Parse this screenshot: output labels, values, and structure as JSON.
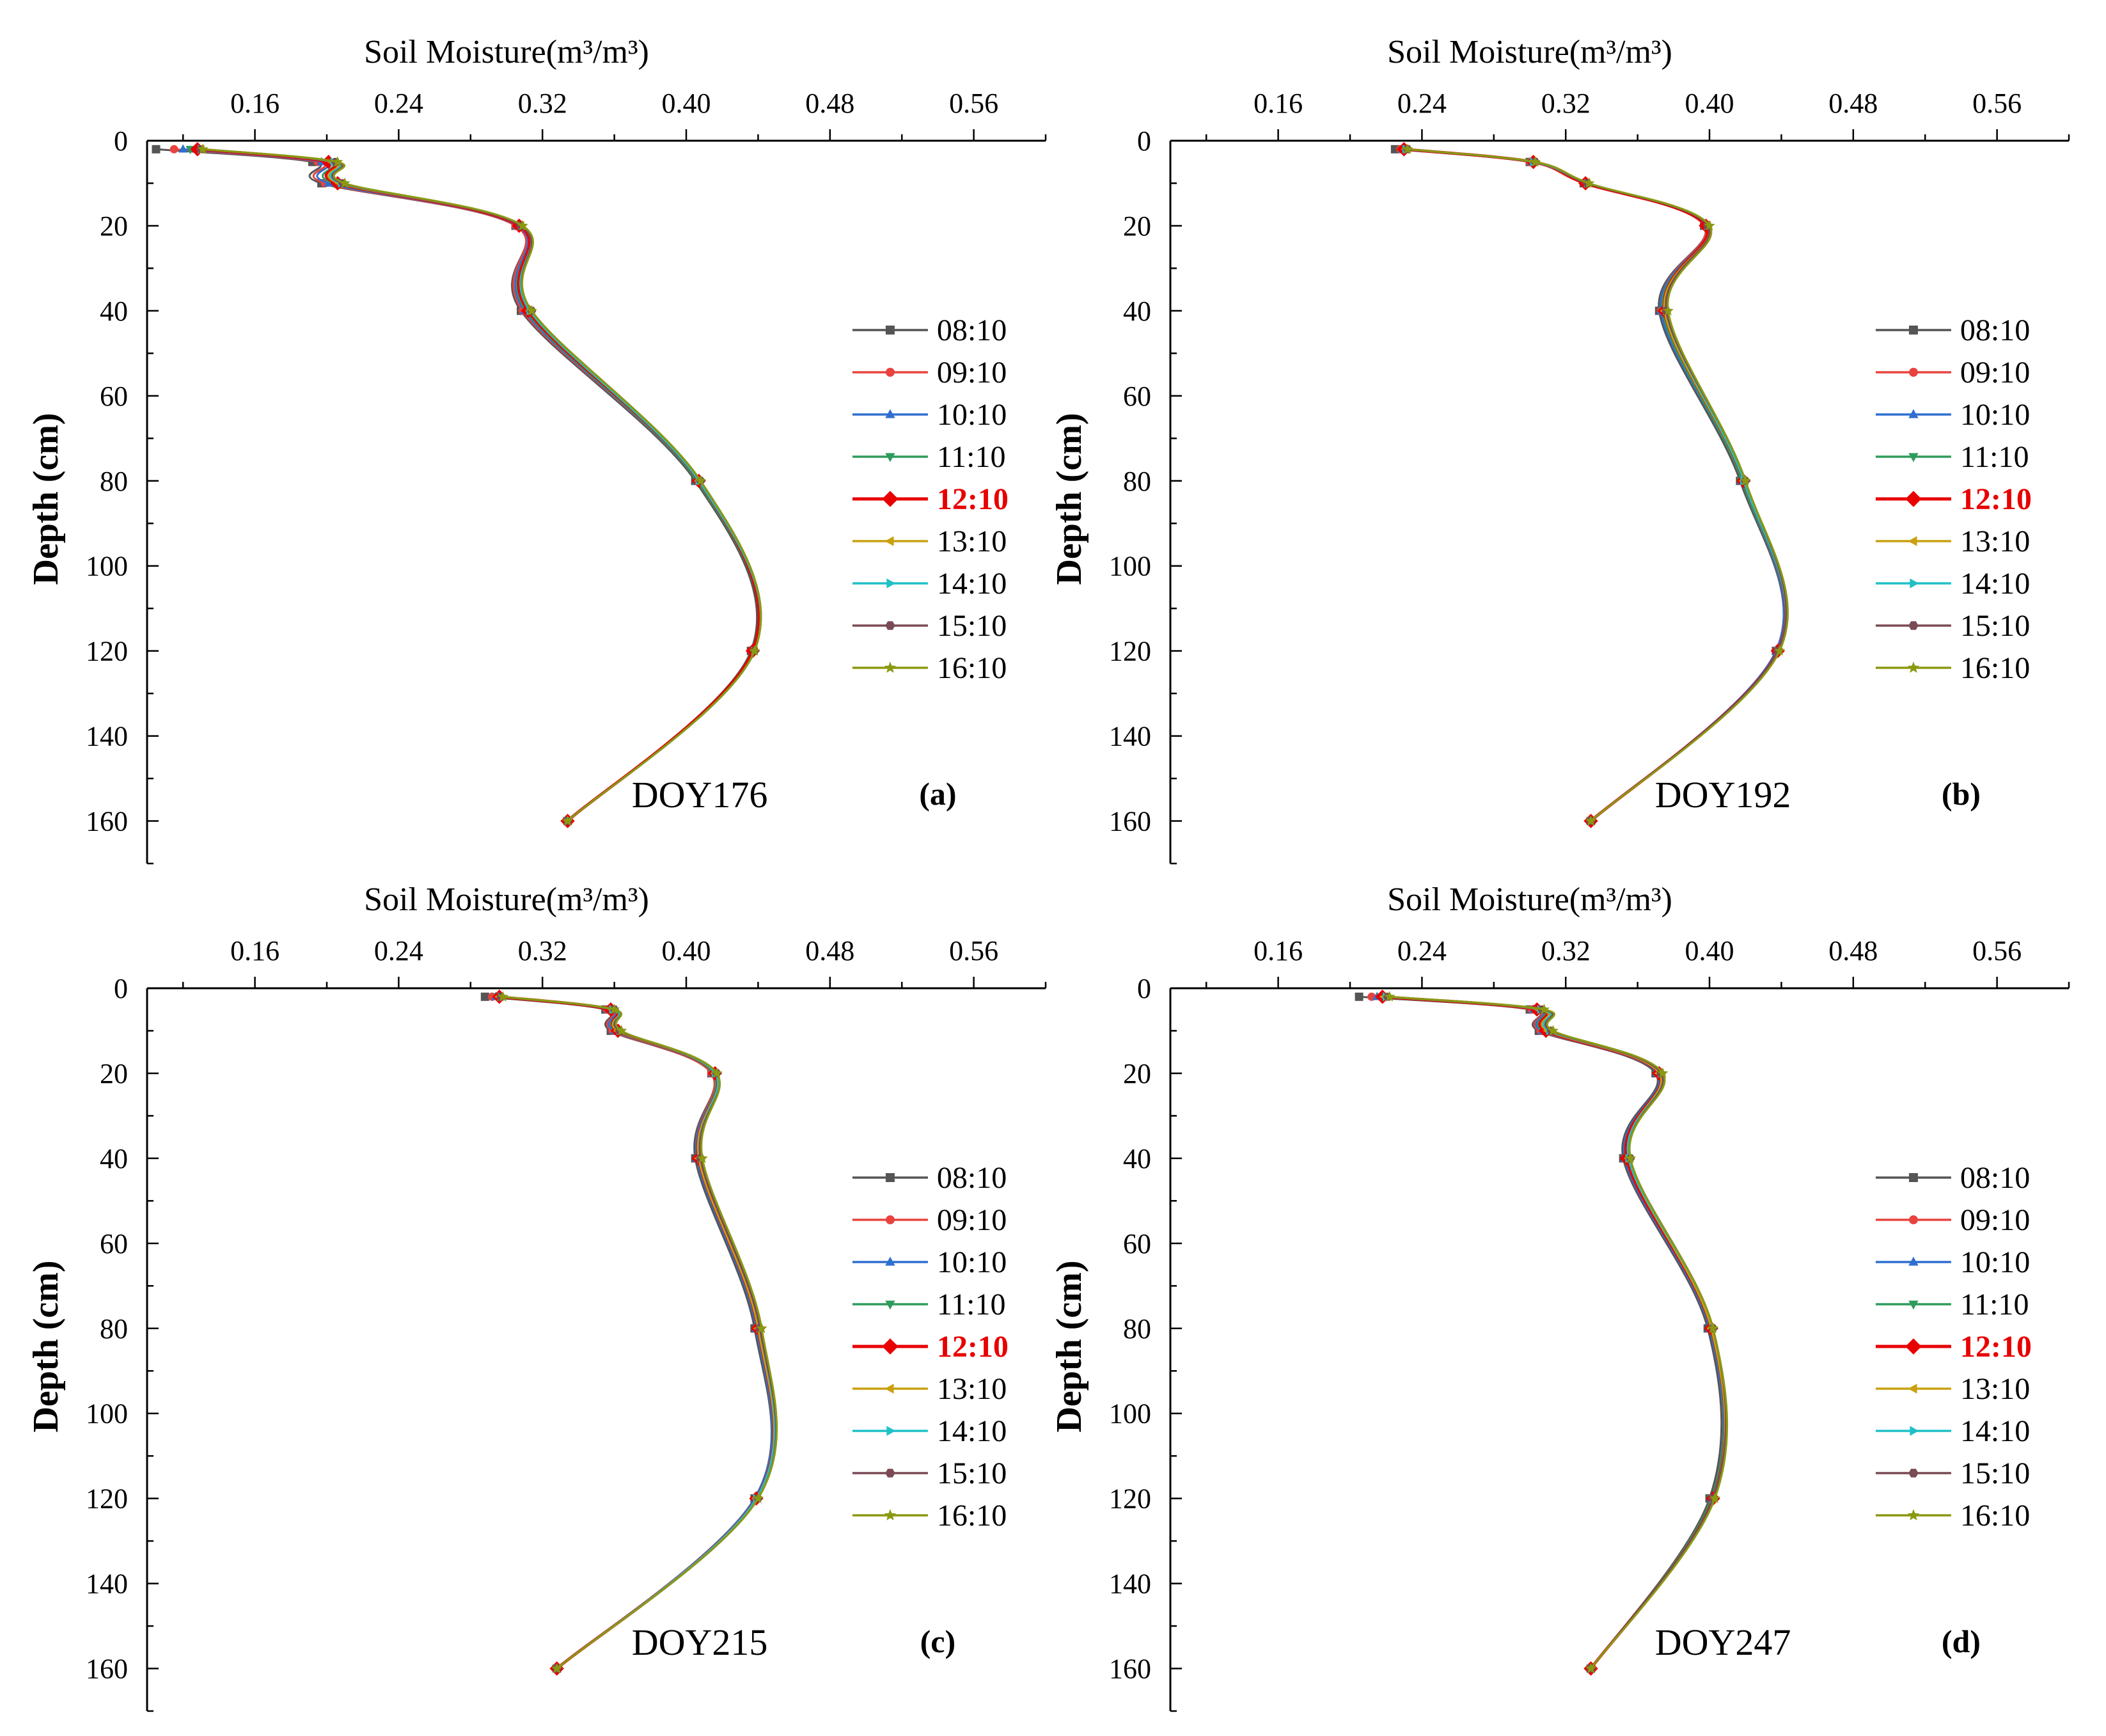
{
  "figure": {
    "times": [
      "08:10",
      "09:10",
      "10:10",
      "11:10",
      "12:10",
      "13:10",
      "14:10",
      "15:10",
      "16:10"
    ],
    "colors": [
      "#555555",
      "#e8433f",
      "#2f6fd0",
      "#2e9b5c",
      "#e80000",
      "#c9a010",
      "#20c0c8",
      "#7a4a55",
      "#8a9a10"
    ],
    "markers": [
      "square",
      "circle",
      "triangle-up",
      "triangle-down",
      "diamond",
      "triangle-left",
      "triangle-right",
      "hexagon",
      "star"
    ],
    "highlight": "12:10"
  },
  "chart_data": [
    {
      "type": "line",
      "title": "DOY176",
      "panel_label": "(a)",
      "xlabel": "Soil Moisture(m³/m³)",
      "ylabel": "Depth (cm)",
      "xticks": [
        "0.16",
        "0.24",
        "0.32",
        "0.40",
        "0.48",
        "0.56"
      ],
      "yticks": [
        "0",
        "20",
        "40",
        "60",
        "80",
        "100",
        "120",
        "140",
        "160"
      ],
      "xlim": [
        0.1,
        0.6
      ],
      "ylim": [
        170,
        0
      ],
      "depths": [
        2,
        5,
        10,
        20,
        40,
        80,
        120,
        160
      ],
      "series": [
        {
          "name": "08:10",
          "values": [
            0.105,
            0.192,
            0.197,
            0.305,
            0.308,
            0.405,
            0.436,
            0.334
          ]
        },
        {
          "name": "09:10",
          "values": [
            0.115,
            0.195,
            0.199,
            0.305,
            0.309,
            0.406,
            0.437,
            0.334
          ]
        },
        {
          "name": "10:10",
          "values": [
            0.12,
            0.197,
            0.201,
            0.306,
            0.31,
            0.406,
            0.437,
            0.334
          ]
        },
        {
          "name": "11:10",
          "values": [
            0.124,
            0.2,
            0.204,
            0.307,
            0.311,
            0.406,
            0.437,
            0.334
          ]
        },
        {
          "name": "12:10",
          "values": [
            0.128,
            0.201,
            0.206,
            0.307,
            0.312,
            0.407,
            0.437,
            0.334
          ]
        },
        {
          "name": "13:10",
          "values": [
            0.13,
            0.203,
            0.207,
            0.308,
            0.313,
            0.407,
            0.438,
            0.334
          ]
        },
        {
          "name": "14:10",
          "values": [
            0.13,
            0.204,
            0.208,
            0.308,
            0.313,
            0.407,
            0.438,
            0.334
          ]
        },
        {
          "name": "15:10",
          "values": [
            0.13,
            0.205,
            0.209,
            0.308,
            0.314,
            0.408,
            0.438,
            0.334
          ]
        },
        {
          "name": "16:10",
          "values": [
            0.131,
            0.206,
            0.21,
            0.309,
            0.314,
            0.408,
            0.438,
            0.334
          ]
        }
      ]
    },
    {
      "type": "line",
      "title": "DOY192",
      "panel_label": "(b)",
      "xlabel": "Soil Moisture(m³/m³)",
      "ylabel": "Depth (cm)",
      "xticks": [
        "0.16",
        "0.24",
        "0.32",
        "0.40",
        "0.48",
        "0.56"
      ],
      "yticks": [
        "0",
        "20",
        "40",
        "60",
        "80",
        "100",
        "120",
        "140",
        "160"
      ],
      "xlim": [
        0.1,
        0.6
      ],
      "ylim": [
        170,
        0
      ],
      "depths": [
        2,
        5,
        10,
        20,
        40,
        80,
        120,
        160
      ],
      "series": [
        {
          "name": "08:10",
          "values": [
            0.225,
            0.3,
            0.33,
            0.397,
            0.372,
            0.417,
            0.437,
            0.334
          ]
        },
        {
          "name": "09:10",
          "values": [
            0.228,
            0.3,
            0.33,
            0.397,
            0.373,
            0.418,
            0.437,
            0.334
          ]
        },
        {
          "name": "10:10",
          "values": [
            0.229,
            0.301,
            0.331,
            0.398,
            0.373,
            0.418,
            0.437,
            0.334
          ]
        },
        {
          "name": "11:10",
          "values": [
            0.23,
            0.301,
            0.331,
            0.398,
            0.374,
            0.418,
            0.438,
            0.334
          ]
        },
        {
          "name": "12:10",
          "values": [
            0.23,
            0.302,
            0.331,
            0.398,
            0.375,
            0.419,
            0.438,
            0.334
          ]
        },
        {
          "name": "13:10",
          "values": [
            0.231,
            0.302,
            0.332,
            0.399,
            0.375,
            0.419,
            0.438,
            0.334
          ]
        },
        {
          "name": "14:10",
          "values": [
            0.231,
            0.302,
            0.332,
            0.399,
            0.376,
            0.419,
            0.438,
            0.334
          ]
        },
        {
          "name": "15:10",
          "values": [
            0.232,
            0.303,
            0.332,
            0.399,
            0.376,
            0.42,
            0.438,
            0.334
          ]
        },
        {
          "name": "16:10",
          "values": [
            0.232,
            0.303,
            0.333,
            0.4,
            0.377,
            0.42,
            0.439,
            0.334
          ]
        }
      ]
    },
    {
      "type": "line",
      "title": "DOY215",
      "panel_label": "(c)",
      "xlabel": "Soil Moisture(m³/m³)",
      "ylabel": "Depth (cm)",
      "xticks": [
        "0.16",
        "0.24",
        "0.32",
        "0.40",
        "0.48",
        "0.56"
      ],
      "yticks": [
        "0",
        "20",
        "40",
        "60",
        "80",
        "100",
        "120",
        "140",
        "160"
      ],
      "xlim": [
        0.1,
        0.6
      ],
      "ylim": [
        170,
        0
      ],
      "depths": [
        2,
        5,
        10,
        20,
        40,
        80,
        120,
        160
      ],
      "series": [
        {
          "name": "08:10",
          "values": [
            0.288,
            0.355,
            0.358,
            0.414,
            0.405,
            0.438,
            0.438,
            0.328
          ]
        },
        {
          "name": "09:10",
          "values": [
            0.292,
            0.356,
            0.359,
            0.414,
            0.406,
            0.439,
            0.438,
            0.328
          ]
        },
        {
          "name": "10:10",
          "values": [
            0.294,
            0.357,
            0.36,
            0.415,
            0.406,
            0.439,
            0.438,
            0.328
          ]
        },
        {
          "name": "11:10",
          "values": [
            0.295,
            0.358,
            0.361,
            0.415,
            0.407,
            0.44,
            0.439,
            0.328
          ]
        },
        {
          "name": "12:10",
          "values": [
            0.296,
            0.358,
            0.362,
            0.416,
            0.407,
            0.44,
            0.439,
            0.328
          ]
        },
        {
          "name": "13:10",
          "values": [
            0.296,
            0.359,
            0.362,
            0.416,
            0.407,
            0.44,
            0.439,
            0.328
          ]
        },
        {
          "name": "14:10",
          "values": [
            0.297,
            0.359,
            0.363,
            0.416,
            0.408,
            0.441,
            0.439,
            0.328
          ]
        },
        {
          "name": "15:10",
          "values": [
            0.297,
            0.36,
            0.363,
            0.417,
            0.408,
            0.441,
            0.44,
            0.328
          ]
        },
        {
          "name": "16:10",
          "values": [
            0.298,
            0.36,
            0.364,
            0.417,
            0.409,
            0.442,
            0.44,
            0.328
          ]
        }
      ]
    },
    {
      "type": "line",
      "title": "DOY247",
      "panel_label": "(d)",
      "xlabel": "Soil Moisture(m³/m³)",
      "ylabel": "Depth (cm)",
      "xticks": [
        "0.16",
        "0.24",
        "0.32",
        "0.40",
        "0.48",
        "0.56"
      ],
      "yticks": [
        "0",
        "20",
        "40",
        "60",
        "80",
        "100",
        "120",
        "140",
        "160"
      ],
      "xlim": [
        0.1,
        0.6
      ],
      "ylim": [
        170,
        0
      ],
      "depths": [
        2,
        5,
        10,
        20,
        40,
        80,
        120,
        160
      ],
      "series": [
        {
          "name": "08:10",
          "values": [
            0.205,
            0.3,
            0.305,
            0.37,
            0.352,
            0.399,
            0.4,
            0.334
          ]
        },
        {
          "name": "09:10",
          "values": [
            0.212,
            0.301,
            0.306,
            0.371,
            0.353,
            0.4,
            0.401,
            0.334
          ]
        },
        {
          "name": "10:10",
          "values": [
            0.215,
            0.302,
            0.307,
            0.371,
            0.353,
            0.4,
            0.401,
            0.334
          ]
        },
        {
          "name": "11:10",
          "values": [
            0.217,
            0.303,
            0.308,
            0.372,
            0.354,
            0.401,
            0.401,
            0.334
          ]
        },
        {
          "name": "12:10",
          "values": [
            0.218,
            0.304,
            0.309,
            0.372,
            0.354,
            0.401,
            0.402,
            0.334
          ]
        },
        {
          "name": "13:10",
          "values": [
            0.219,
            0.305,
            0.31,
            0.372,
            0.355,
            0.401,
            0.402,
            0.334
          ]
        },
        {
          "name": "14:10",
          "values": [
            0.22,
            0.306,
            0.311,
            0.373,
            0.355,
            0.402,
            0.402,
            0.334
          ]
        },
        {
          "name": "15:10",
          "values": [
            0.221,
            0.307,
            0.312,
            0.373,
            0.356,
            0.402,
            0.402,
            0.334
          ]
        },
        {
          "name": "16:10",
          "values": [
            0.222,
            0.308,
            0.313,
            0.374,
            0.356,
            0.402,
            0.403,
            0.334
          ]
        }
      ]
    }
  ]
}
